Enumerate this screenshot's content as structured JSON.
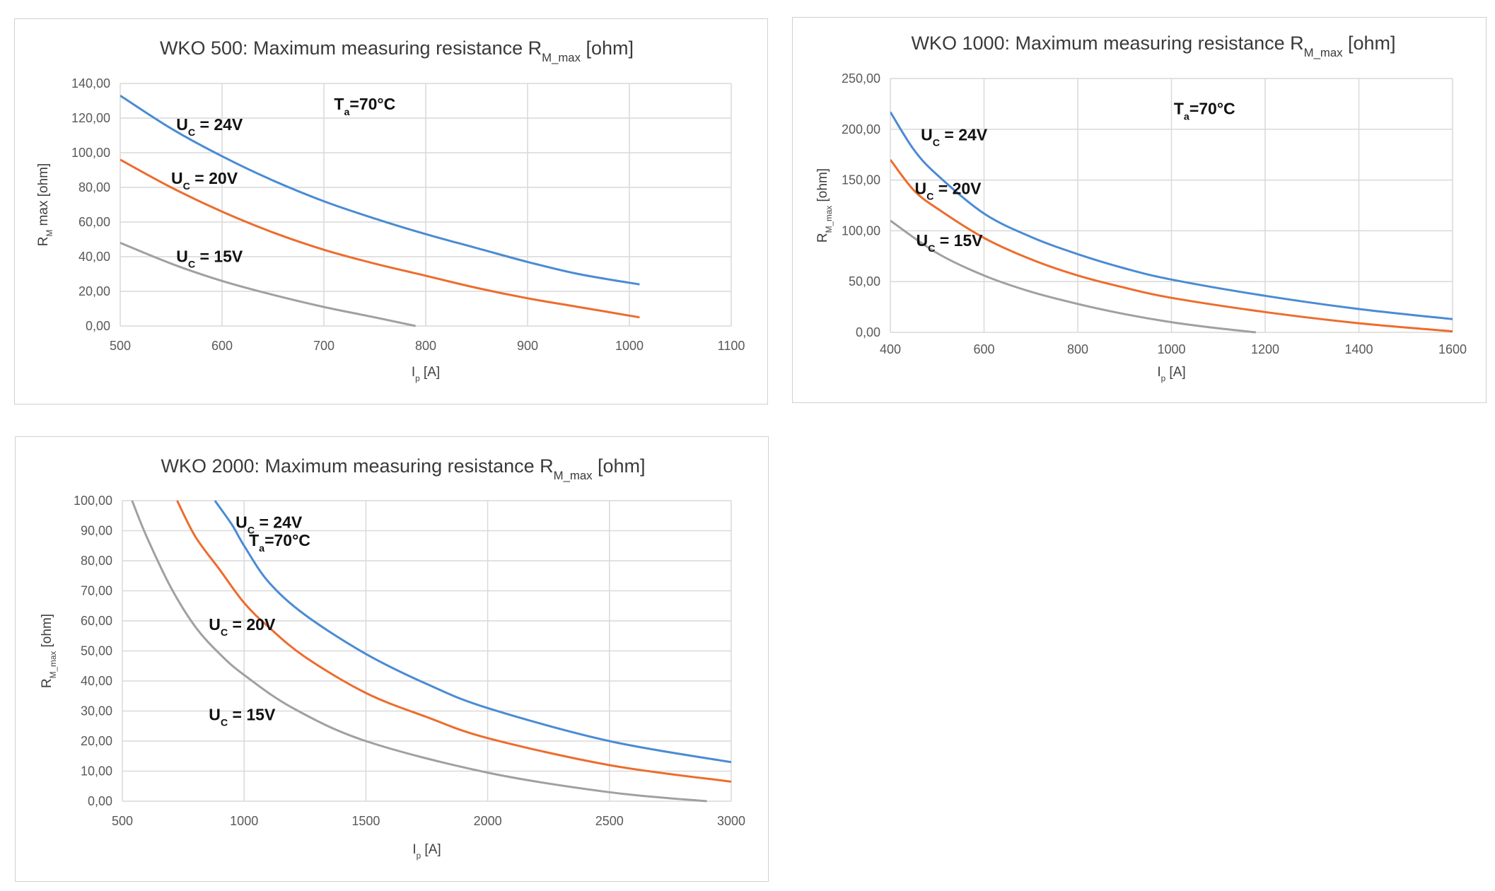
{
  "chart_data": [
    {
      "type": "line",
      "title": "WKO 500:  Maximum measuring resistance R",
      "title_sub": "M_max",
      "title_tail": " [ohm]",
      "xlabel": "I",
      "xlabel_sub": "p",
      "xlabel_tail": " [A]",
      "ylabel": "R",
      "ylabel_sub": "M",
      "ylabel_tail": " max [ohm]",
      "xlim": [
        500,
        1100
      ],
      "ylim": [
        0,
        140
      ],
      "x_ticks": [
        500,
        600,
        700,
        800,
        900,
        1000,
        1100
      ],
      "x_tick_labels": [
        "500",
        "600",
        "700",
        "800",
        "900",
        "1000",
        "1100"
      ],
      "y_ticks": [
        0,
        20,
        40,
        60,
        80,
        100,
        120,
        140
      ],
      "y_tick_labels": [
        "0,00",
        "20,00",
        "40,00",
        "60,00",
        "80,00",
        "100,00",
        "120,00",
        "140,00"
      ],
      "grid": true,
      "colors": {
        "blue": "#4a8bd4",
        "orange": "#ed6c2c",
        "gray": "#a0a0a0"
      },
      "series": [
        {
          "color": "blue",
          "x": [
            500,
            550,
            600,
            650,
            700,
            750,
            800,
            850,
            900,
            950,
            1010
          ],
          "y": [
            133,
            114,
            98,
            84,
            72,
            62,
            53,
            45,
            37,
            30,
            24
          ]
        },
        {
          "color": "orange",
          "x": [
            500,
            550,
            600,
            650,
            700,
            750,
            800,
            850,
            900,
            950,
            1010
          ],
          "y": [
            96,
            80,
            66,
            54,
            44,
            36,
            29,
            22,
            16,
            11,
            5
          ]
        },
        {
          "color": "gray",
          "x": [
            500,
            550,
            600,
            650,
            700,
            750,
            790
          ],
          "y": [
            48,
            36,
            26,
            18,
            11,
            5,
            0
          ]
        }
      ],
      "annotations": [
        {
          "text": "U",
          "sub": "C",
          "tail": " = 24V",
          "x": 555,
          "y": 113
        },
        {
          "text": "U",
          "sub": "C",
          "tail": " = 20V",
          "x": 550,
          "y": 82
        },
        {
          "text": "U",
          "sub": "C",
          "tail": " = 15V",
          "x": 555,
          "y": 37
        },
        {
          "text": "T",
          "sub": "a",
          "tail": "=70°C",
          "x": 710,
          "y": 125
        }
      ]
    },
    {
      "type": "line",
      "title": "WKO 1000:  Maximum measuring resistance R",
      "title_sub": "M_max",
      "title_tail": " [ohm]",
      "xlabel": "I",
      "xlabel_sub": "p",
      "xlabel_tail": " [A]",
      "ylabel": "R",
      "ylabel_sub": "M_max",
      "ylabel_tail": " [ohm]",
      "xlim": [
        400,
        1600
      ],
      "ylim": [
        0,
        250
      ],
      "x_ticks": [
        400,
        600,
        800,
        1000,
        1200,
        1400,
        1600
      ],
      "x_tick_labels": [
        "400",
        "600",
        "800",
        "1000",
        "1200",
        "1400",
        "1600"
      ],
      "y_ticks": [
        0,
        50,
        100,
        150,
        200,
        250
      ],
      "y_tick_labels": [
        "0,00",
        "50,00",
        "100,00",
        "150,00",
        "200,00",
        "250,00"
      ],
      "grid": true,
      "colors": {
        "blue": "#4a8bd4",
        "orange": "#ed6c2c",
        "gray": "#a0a0a0"
      },
      "series": [
        {
          "color": "blue",
          "x": [
            400,
            450,
            500,
            600,
            700,
            800,
            900,
            1000,
            1200,
            1400,
            1600
          ],
          "y": [
            217,
            180,
            155,
            117,
            94,
            77,
            63,
            52,
            36,
            23,
            13
          ]
        },
        {
          "color": "orange",
          "x": [
            400,
            450,
            500,
            600,
            700,
            800,
            900,
            1000,
            1200,
            1400,
            1600
          ],
          "y": [
            170,
            140,
            122,
            93,
            72,
            56,
            44,
            34,
            20,
            9,
            1
          ]
        },
        {
          "color": "gray",
          "x": [
            400,
            500,
            600,
            700,
            800,
            900,
            1000,
            1100,
            1180
          ],
          "y": [
            110,
            78,
            56,
            40,
            28,
            18,
            10,
            4,
            0
          ]
        }
      ],
      "annotations": [
        {
          "text": "U",
          "sub": "C",
          "tail": " = 24V",
          "x": 465,
          "y": 189
        },
        {
          "text": "U",
          "sub": "C",
          "tail": " = 20V",
          "x": 452,
          "y": 136
        },
        {
          "text": "U",
          "sub": "C",
          "tail": " = 15V",
          "x": 455,
          "y": 85
        },
        {
          "text": "T",
          "sub": "a",
          "tail": "=70°C",
          "x": 1005,
          "y": 215
        }
      ]
    },
    {
      "type": "line",
      "title": "WKO 2000:  Maximum measuring resistance R",
      "title_sub": "M_max",
      "title_tail": " [ohm]",
      "xlabel": "I",
      "xlabel_sub": "p",
      "xlabel_tail": " [A]",
      "ylabel": "R",
      "ylabel_sub": "M_max",
      "ylabel_tail": " [ohm]",
      "xlim": [
        500,
        3000
      ],
      "ylim": [
        0,
        100
      ],
      "x_ticks": [
        500,
        1000,
        1500,
        2000,
        2500,
        3000
      ],
      "x_tick_labels": [
        "500",
        "1000",
        "1500",
        "2000",
        "2500",
        "3000"
      ],
      "y_ticks": [
        0,
        10,
        20,
        30,
        40,
        50,
        60,
        70,
        80,
        90,
        100
      ],
      "y_tick_labels": [
        "0,00",
        "10,00",
        "20,00",
        "30,00",
        "40,00",
        "50,00",
        "60,00",
        "70,00",
        "80,00",
        "90,00",
        "100,00"
      ],
      "grid": true,
      "colors": {
        "blue": "#4a8bd4",
        "orange": "#ed6c2c",
        "gray": "#a0a0a0"
      },
      "series": [
        {
          "color": "blue",
          "x": [
            880,
            950,
            1000,
            1100,
            1250,
            1500,
            1750,
            2000,
            2500,
            3000
          ],
          "y": [
            100,
            92,
            85,
            73,
            62,
            49,
            39,
            31,
            20,
            13
          ]
        },
        {
          "color": "orange",
          "x": [
            725,
            800,
            900,
            1000,
            1100,
            1250,
            1500,
            1750,
            2000,
            2500,
            3000
          ],
          "y": [
            100,
            88,
            77,
            66,
            58,
            48,
            36,
            28,
            21,
            12,
            6.5
          ]
        },
        {
          "color": "gray",
          "x": [
            540,
            600,
            700,
            800,
            900,
            1000,
            1200,
            1500,
            2000,
            2500,
            2900
          ],
          "y": [
            100,
            88,
            71,
            58,
            49,
            42,
            31,
            20,
            9.5,
            3,
            0
          ]
        }
      ],
      "annotations": [
        {
          "text": "U",
          "sub": "C",
          "tail": " = 24V",
          "x": 965,
          "y": 91
        },
        {
          "text": "U",
          "sub": "C",
          "tail": " = 20V",
          "x": 855,
          "y": 57
        },
        {
          "text": "U",
          "sub": "C",
          "tail": " = 15V",
          "x": 855,
          "y": 27
        },
        {
          "text": "T",
          "sub": "a",
          "tail": "=70°C",
          "x": 1020,
          "y": 85
        }
      ]
    }
  ]
}
